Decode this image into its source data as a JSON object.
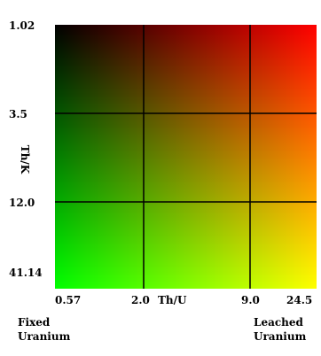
{
  "chart_data": {
    "type": "heatmap",
    "title": "",
    "xlabel": "Th/U",
    "ylabel": "Th/K",
    "x_ticks": [
      "0.57",
      "2.0",
      "9.0",
      "24.5"
    ],
    "y_ticks": [
      "1.02",
      "3.5",
      "12.0",
      "41.14"
    ],
    "x_end_labels": {
      "low": [
        "Fixed",
        "Uranium"
      ],
      "high": [
        "Leached",
        "Uranium"
      ]
    },
    "color_ramp": {
      "top_left": "#000000",
      "top_right": "#ff0000",
      "bottom_left": "#00ff00",
      "bottom_right": "#ffff00"
    },
    "grid": true
  }
}
